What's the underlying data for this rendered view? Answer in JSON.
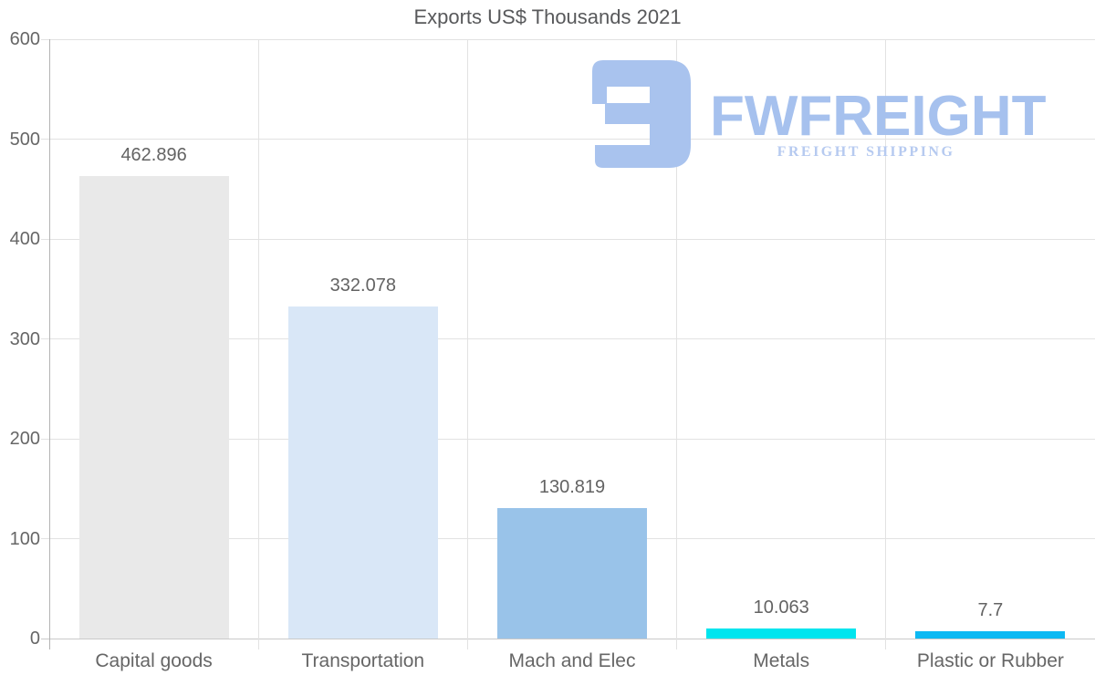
{
  "title": "Exports US$ Thousands 2021",
  "logo": {
    "brand": "FWFREIGHT",
    "tagline": "FREIGHT SHIPPING",
    "icon_color": "#a9c3ee",
    "brand_color": "#a6c1ee",
    "tagline_color": "#b6caf0"
  },
  "chart_data": {
    "type": "bar",
    "title": "Exports US$ Thousands 2021",
    "categories": [
      "Capital goods",
      "Transportation",
      "Mach and Elec",
      "Metals",
      "Plastic or Rubber"
    ],
    "values": [
      462.896,
      332.078,
      130.819,
      10.063,
      7.7
    ],
    "value_labels": [
      "462.896",
      "332.078",
      "130.819",
      "10.063",
      "7.7"
    ],
    "bar_colors": [
      "#e9e9e9",
      "#d9e7f7",
      "#99c3e9",
      "#00e5ee",
      "#0db9f3"
    ],
    "xlabel": "",
    "ylabel": "",
    "ylim": [
      0,
      600
    ],
    "yticks": [
      0,
      100,
      200,
      300,
      400,
      500,
      600
    ],
    "grid": true,
    "legend": false
  }
}
